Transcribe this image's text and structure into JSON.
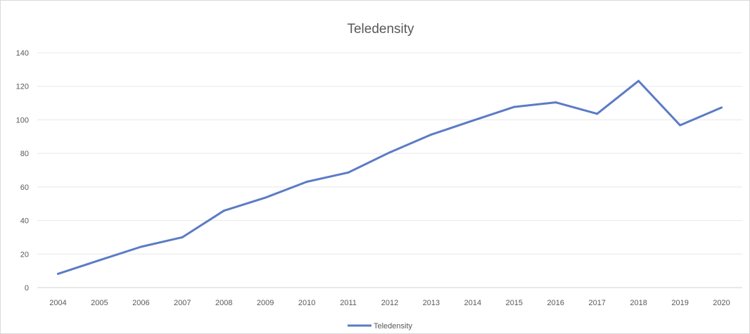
{
  "chart_data": {
    "type": "line",
    "title": "Teledensity",
    "xlabel": "",
    "ylabel": "",
    "categories": [
      "2004",
      "2005",
      "2006",
      "2007",
      "2008",
      "2009",
      "2010",
      "2011",
      "2012",
      "2013",
      "2014",
      "2015",
      "2016",
      "2017",
      "2018",
      "2019",
      "2020"
    ],
    "series": [
      {
        "name": "Teledensity",
        "values": [
          8.2,
          16.3,
          24.3,
          30.0,
          45.8,
          53.6,
          63.1,
          68.6,
          80.6,
          91.2,
          99.5,
          107.7,
          110.4,
          103.6,
          123.2,
          96.8,
          107.3
        ],
        "color": "#5b7bc6"
      }
    ],
    "ylim": [
      0,
      140
    ],
    "yticks": [
      0,
      20,
      40,
      60,
      80,
      100,
      120,
      140
    ],
    "grid": true,
    "legend_position": "bottom"
  }
}
